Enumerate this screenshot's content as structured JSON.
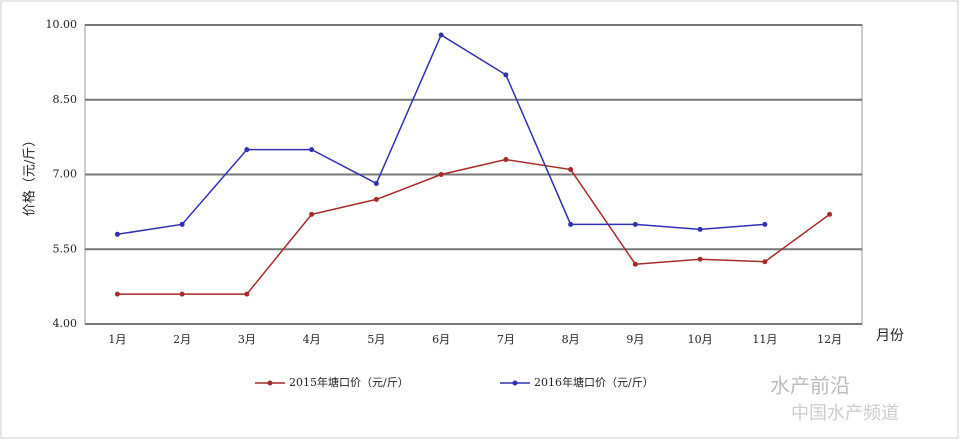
{
  "chart_data": {
    "type": "line",
    "y_label": "价格（元/斤）",
    "x_label": "月份",
    "categories": [
      "1月",
      "2月",
      "3月",
      "4月",
      "5月",
      "6月",
      "7月",
      "8月",
      "9月",
      "10月",
      "11月",
      "12月"
    ],
    "series": [
      {
        "name": "2015年塘口价（元/斤）",
        "color": "#a52a2a",
        "values": [
          4.6,
          4.6,
          4.6,
          6.2,
          6.5,
          7.0,
          7.3,
          7.1,
          5.2,
          5.3,
          5.25,
          6.2
        ]
      },
      {
        "name": "2016年塘口价（元/斤）",
        "color": "#3030b0",
        "values": [
          5.8,
          6.0,
          7.5,
          7.5,
          6.82,
          9.8,
          9.0,
          6.0,
          6.0,
          5.9,
          6.0,
          null
        ]
      }
    ],
    "ylim": [
      4,
      10
    ],
    "yticks": [
      {
        "value": 4,
        "label": "4.00"
      },
      {
        "value": 5.5,
        "label": "5.50"
      },
      {
        "value": 7,
        "label": "7.00"
      },
      {
        "value": 8.5,
        "label": "8.50"
      },
      {
        "value": 10,
        "label": "10.00"
      }
    ],
    "grid": true,
    "watermark": [
      "水产前沿",
      "中国水产频道"
    ]
  }
}
